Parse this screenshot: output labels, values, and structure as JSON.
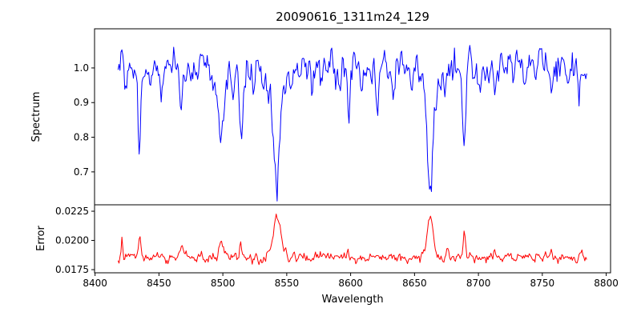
{
  "chart_data": {
    "type": "line",
    "title": "20090616_1311m24_129",
    "xlabel": "Wavelength",
    "xlim": [
      8399.6,
      8803.4
    ],
    "x_ticks": [
      8400,
      8450,
      8500,
      8550,
      8600,
      8650,
      8700,
      8750,
      8800
    ],
    "x_data_range": [
      8418,
      8785
    ],
    "grid": false,
    "legend": "none",
    "subplots": [
      {
        "ylabel": "Spectrum",
        "ylim": [
          0.605,
          1.113
        ],
        "y_ticks": [
          {
            "value": 0.7,
            "label": "0.7"
          },
          {
            "value": 0.8,
            "label": "0.8"
          },
          {
            "value": 0.9,
            "label": "0.9"
          },
          {
            "value": 1.0,
            "label": "1.0"
          }
        ],
        "series": {
          "name": "spectrum-line",
          "color": "#0000ff",
          "baseline": 1.0,
          "noise_sigma": 0.022,
          "noise_corr": 0.45,
          "seed": 20090616,
          "x_start": 8418,
          "x_end": 8785,
          "x_step": 0.75,
          "features": [
            {
              "center": 8424.0,
              "amp": -0.1,
              "sigma": 0.9
            },
            {
              "center": 8434.5,
              "amp": -0.24,
              "sigma": 1.0
            },
            {
              "center": 8443.0,
              "amp": -0.07,
              "sigma": 0.8
            },
            {
              "center": 8452.0,
              "amp": -0.06,
              "sigma": 0.8
            },
            {
              "center": 8460.0,
              "amp": -0.05,
              "sigma": 0.8
            },
            {
              "center": 8467.5,
              "amp": -0.13,
              "sigma": 1.0
            },
            {
              "center": 8480.0,
              "amp": -0.07,
              "sigma": 0.8
            },
            {
              "center": 8490.0,
              "amp": -0.05,
              "sigma": 0.8
            },
            {
              "center": 8498.5,
              "amp": -0.16,
              "sigma": 2.0
            },
            {
              "center": 8498.5,
              "amp": -0.05,
              "sigma": 5.0
            },
            {
              "center": 8508.0,
              "amp": -0.05,
              "sigma": 0.8
            },
            {
              "center": 8514.5,
              "amp": -0.19,
              "sigma": 1.1
            },
            {
              "center": 8524.0,
              "amp": -0.07,
              "sigma": 0.8
            },
            {
              "center": 8532.0,
              "amp": -0.05,
              "sigma": 0.8
            },
            {
              "center": 8542.3,
              "amp": -0.3,
              "sigma": 2.2
            },
            {
              "center": 8542.3,
              "amp": -0.08,
              "sigma": 7.0
            },
            {
              "center": 8556.0,
              "amp": -0.05,
              "sigma": 0.8
            },
            {
              "center": 8570.0,
              "amp": -0.05,
              "sigma": 0.8
            },
            {
              "center": 8582.0,
              "amp": -0.07,
              "sigma": 0.9
            },
            {
              "center": 8590.0,
              "amp": -0.04,
              "sigma": 0.8
            },
            {
              "center": 8598.5,
              "amp": -0.13,
              "sigma": 1.0
            },
            {
              "center": 8609.0,
              "amp": -0.06,
              "sigma": 0.8
            },
            {
              "center": 8621.0,
              "amp": -0.1,
              "sigma": 0.9
            },
            {
              "center": 8634.0,
              "amp": -0.05,
              "sigma": 0.8
            },
            {
              "center": 8648.0,
              "amp": -0.06,
              "sigma": 0.8
            },
            {
              "center": 8662.3,
              "amp": -0.28,
              "sigma": 2.1
            },
            {
              "center": 8662.3,
              "amp": -0.07,
              "sigma": 6.0
            },
            {
              "center": 8674.0,
              "amp": -0.07,
              "sigma": 0.8
            },
            {
              "center": 8688.7,
              "amp": -0.24,
              "sigma": 1.2
            },
            {
              "center": 8702.0,
              "amp": -0.05,
              "sigma": 0.8
            },
            {
              "center": 8713.0,
              "amp": -0.08,
              "sigma": 0.9
            },
            {
              "center": 8727.0,
              "amp": -0.05,
              "sigma": 0.8
            },
            {
              "center": 8736.0,
              "amp": -0.05,
              "sigma": 0.8
            },
            {
              "center": 8745.0,
              "amp": -0.06,
              "sigma": 0.8
            },
            {
              "center": 8757.0,
              "amp": -0.07,
              "sigma": 0.9
            },
            {
              "center": 8770.0,
              "amp": -0.05,
              "sigma": 0.8
            },
            {
              "center": 8779.0,
              "amp": -0.05,
              "sigma": 0.8
            }
          ]
        }
      },
      {
        "ylabel": "Error",
        "ylim": [
          0.01723,
          0.02305
        ],
        "y_ticks": [
          {
            "value": 0.0175,
            "label": "0.0175"
          },
          {
            "value": 0.02,
            "label": "0.0200"
          },
          {
            "value": 0.0225,
            "label": "0.0225"
          }
        ],
        "series": {
          "name": "error-line",
          "color": "#ff0000",
          "baseline": 0.01855,
          "noise_sigma": 0.0002,
          "noise_corr": 0.4,
          "seed": 1311,
          "x_start": 8418,
          "x_end": 8785,
          "x_step": 0.75,
          "features": [
            {
              "center": 8421.0,
              "amp": 0.0016,
              "sigma": 0.6
            },
            {
              "center": 8435.0,
              "amp": 0.0018,
              "sigma": 0.9
            },
            {
              "center": 8452.0,
              "amp": 0.0006,
              "sigma": 0.7
            },
            {
              "center": 8468.0,
              "amp": 0.0008,
              "sigma": 0.8
            },
            {
              "center": 8483.0,
              "amp": 0.0007,
              "sigma": 0.7
            },
            {
              "center": 8498.5,
              "amp": 0.0014,
              "sigma": 1.5
            },
            {
              "center": 8514.0,
              "amp": 0.0009,
              "sigma": 0.8
            },
            {
              "center": 8542.3,
              "amp": 0.0036,
              "sigma": 2.8
            },
            {
              "center": 8556.0,
              "amp": 0.0005,
              "sigma": 0.7
            },
            {
              "center": 8582.0,
              "amp": 0.0005,
              "sigma": 0.7
            },
            {
              "center": 8598.0,
              "amp": 0.0006,
              "sigma": 0.8
            },
            {
              "center": 8621.0,
              "amp": 0.0005,
              "sigma": 0.7
            },
            {
              "center": 8662.3,
              "amp": 0.0034,
              "sigma": 2.4
            },
            {
              "center": 8676.0,
              "amp": 0.0006,
              "sigma": 0.7
            },
            {
              "center": 8689.0,
              "amp": 0.0017,
              "sigma": 1.0
            },
            {
              "center": 8713.0,
              "amp": 0.0006,
              "sigma": 0.7
            },
            {
              "center": 8757.0,
              "amp": 0.0005,
              "sigma": 0.7
            }
          ]
        }
      }
    ]
  }
}
